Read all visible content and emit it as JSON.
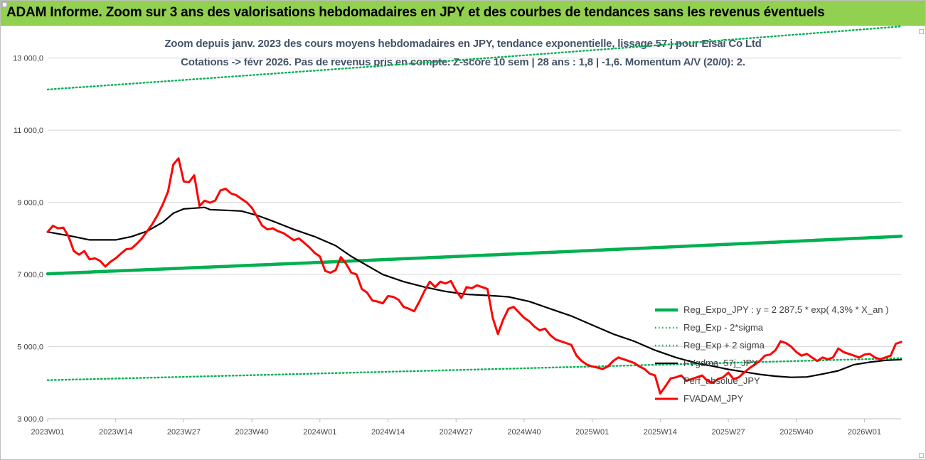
{
  "header": {
    "title": "ADAM Informe. Zoom sur 3 ans des valorisations hebdomadaires en JPY et des courbes de tendances sans les revenus éventuels"
  },
  "chart_data": {
    "type": "line",
    "title_line1": "Zoom depuis janv. 2023 des cours moyens hebdomadaires en JPY, tendance exponentielle, lissage 57 j pour Eisai Co Ltd",
    "title_line2": "Cotations -> févr 2026. Pas de revenus pris en compte. Z-score 10 sem | 28 ans : 1,8 | -1,6. Momentum A/V (20/0): 2.",
    "ylim": [
      3000,
      14000
    ],
    "yticks": [
      3000,
      5000,
      7000,
      9000,
      11000,
      13000
    ],
    "ytick_labels": [
      "3 000,0",
      "5 000,0",
      "7 000,0",
      "9 000,0",
      "11 000,0",
      "13 000,0"
    ],
    "x_count": 164,
    "xticks": [
      {
        "i": 0,
        "label": "2023W01"
      },
      {
        "i": 13,
        "label": "2023W14"
      },
      {
        "i": 26,
        "label": "2023W27"
      },
      {
        "i": 39,
        "label": "2023W40"
      },
      {
        "i": 52,
        "label": "2024W01"
      },
      {
        "i": 65,
        "label": "2024W14"
      },
      {
        "i": 78,
        "label": "2024W27"
      },
      {
        "i": 91,
        "label": "2024W40"
      },
      {
        "i": 104,
        "label": "2025W01"
      },
      {
        "i": 117,
        "label": "2025W14"
      },
      {
        "i": 130,
        "label": "2025W27"
      },
      {
        "i": 143,
        "label": "2025W40"
      },
      {
        "i": 156,
        "label": "2026W01"
      }
    ],
    "legend_placement": "right",
    "series": [
      {
        "name": "Reg_Expo_JPY : y = 2 287,5 * exp( 4,3% * X_an )",
        "color": "#00b050",
        "style": "thick",
        "start": 7020,
        "end": 8060
      },
      {
        "name": "Reg_Exp - 2*sigma",
        "color": "#00b050",
        "style": "dotted",
        "start": 4070,
        "end": 4680
      },
      {
        "name": "Reg_Exp + 2 sigma",
        "color": "#00b050",
        "style": "dotted",
        "start": 12130,
        "end": 13880
      },
      {
        "name": "FVgdma_57j_JPY",
        "color": "#000000",
        "style": "solid",
        "points": [
          [
            0,
            8180
          ],
          [
            5,
            8050
          ],
          [
            8,
            7960
          ],
          [
            13,
            7960
          ],
          [
            16,
            8050
          ],
          [
            19,
            8200
          ],
          [
            22,
            8450
          ],
          [
            24,
            8700
          ],
          [
            26,
            8820
          ],
          [
            28,
            8840
          ],
          [
            30,
            8860
          ],
          [
            31,
            8800
          ],
          [
            34,
            8780
          ],
          [
            37,
            8760
          ],
          [
            40,
            8640
          ],
          [
            43,
            8480
          ],
          [
            47,
            8250
          ],
          [
            51,
            8050
          ],
          [
            55,
            7800
          ],
          [
            58,
            7500
          ],
          [
            61,
            7250
          ],
          [
            64,
            7000
          ],
          [
            68,
            6800
          ],
          [
            72,
            6650
          ],
          [
            76,
            6530
          ],
          [
            80,
            6450
          ],
          [
            84,
            6420
          ],
          [
            88,
            6380
          ],
          [
            92,
            6250
          ],
          [
            96,
            6050
          ],
          [
            100,
            5850
          ],
          [
            104,
            5600
          ],
          [
            108,
            5350
          ],
          [
            112,
            5150
          ],
          [
            116,
            4900
          ],
          [
            120,
            4700
          ],
          [
            124,
            4540
          ],
          [
            127,
            4460
          ],
          [
            130,
            4370
          ],
          [
            133,
            4300
          ],
          [
            136,
            4230
          ],
          [
            139,
            4180
          ],
          [
            142,
            4150
          ],
          [
            145,
            4160
          ],
          [
            148,
            4240
          ],
          [
            151,
            4330
          ],
          [
            154,
            4500
          ],
          [
            157,
            4570
          ],
          [
            160,
            4620
          ],
          [
            163,
            4640
          ]
        ]
      },
      {
        "name": "Perf_absolue_JPY",
        "color": "#7f7f7f",
        "style": "hidden"
      },
      {
        "name": "FVADAM_JPY",
        "color": "#ff0000",
        "style": "solid",
        "points": [
          [
            0,
            8180
          ],
          [
            1,
            8350
          ],
          [
            2,
            8280
          ],
          [
            3,
            8300
          ],
          [
            4,
            8050
          ],
          [
            5,
            7650
          ],
          [
            6,
            7550
          ],
          [
            7,
            7650
          ],
          [
            8,
            7420
          ],
          [
            9,
            7450
          ],
          [
            10,
            7380
          ],
          [
            11,
            7220
          ],
          [
            12,
            7350
          ],
          [
            13,
            7450
          ],
          [
            14,
            7580
          ],
          [
            15,
            7700
          ],
          [
            16,
            7720
          ],
          [
            17,
            7850
          ],
          [
            18,
            8000
          ],
          [
            19,
            8200
          ],
          [
            20,
            8400
          ],
          [
            21,
            8650
          ],
          [
            22,
            8950
          ],
          [
            23,
            9300
          ],
          [
            24,
            10050
          ],
          [
            25,
            10220
          ],
          [
            26,
            9580
          ],
          [
            27,
            9560
          ],
          [
            28,
            9750
          ],
          [
            29,
            8900
          ],
          [
            30,
            9050
          ],
          [
            31,
            8990
          ],
          [
            32,
            9050
          ],
          [
            33,
            9330
          ],
          [
            34,
            9380
          ],
          [
            35,
            9250
          ],
          [
            36,
            9200
          ],
          [
            37,
            9100
          ],
          [
            38,
            9000
          ],
          [
            39,
            8850
          ],
          [
            40,
            8600
          ],
          [
            41,
            8350
          ],
          [
            42,
            8250
          ],
          [
            43,
            8280
          ],
          [
            44,
            8200
          ],
          [
            45,
            8150
          ],
          [
            46,
            8050
          ],
          [
            47,
            7950
          ],
          [
            48,
            8000
          ],
          [
            49,
            7880
          ],
          [
            50,
            7750
          ],
          [
            51,
            7600
          ],
          [
            52,
            7500
          ],
          [
            53,
            7100
          ],
          [
            54,
            7050
          ],
          [
            55,
            7120
          ],
          [
            56,
            7480
          ],
          [
            57,
            7300
          ],
          [
            58,
            7050
          ],
          [
            59,
            7000
          ],
          [
            60,
            6600
          ],
          [
            61,
            6500
          ],
          [
            62,
            6280
          ],
          [
            63,
            6250
          ],
          [
            64,
            6200
          ],
          [
            65,
            6400
          ],
          [
            66,
            6380
          ],
          [
            67,
            6300
          ],
          [
            68,
            6100
          ],
          [
            69,
            6050
          ],
          [
            70,
            5980
          ],
          [
            71,
            6250
          ],
          [
            72,
            6550
          ],
          [
            73,
            6800
          ],
          [
            74,
            6650
          ],
          [
            75,
            6800
          ],
          [
            76,
            6750
          ],
          [
            77,
            6820
          ],
          [
            78,
            6550
          ],
          [
            79,
            6350
          ],
          [
            80,
            6650
          ],
          [
            81,
            6620
          ],
          [
            82,
            6700
          ],
          [
            83,
            6650
          ],
          [
            84,
            6600
          ],
          [
            85,
            5800
          ],
          [
            86,
            5350
          ],
          [
            87,
            5750
          ],
          [
            88,
            6050
          ],
          [
            89,
            6100
          ],
          [
            90,
            5950
          ],
          [
            91,
            5800
          ],
          [
            92,
            5700
          ],
          [
            93,
            5550
          ],
          [
            94,
            5450
          ],
          [
            95,
            5500
          ],
          [
            96,
            5320
          ],
          [
            97,
            5200
          ],
          [
            98,
            5150
          ],
          [
            99,
            5100
          ],
          [
            100,
            5050
          ],
          [
            101,
            4750
          ],
          [
            102,
            4600
          ],
          [
            103,
            4500
          ],
          [
            104,
            4450
          ],
          [
            105,
            4420
          ],
          [
            106,
            4380
          ],
          [
            107,
            4450
          ],
          [
            108,
            4600
          ],
          [
            109,
            4700
          ],
          [
            110,
            4650
          ],
          [
            111,
            4600
          ],
          [
            112,
            4550
          ],
          [
            113,
            4450
          ],
          [
            114,
            4380
          ],
          [
            115,
            4250
          ],
          [
            116,
            4200
          ],
          [
            117,
            3700
          ],
          [
            118,
            3900
          ],
          [
            119,
            4120
          ],
          [
            120,
            4150
          ],
          [
            121,
            4200
          ],
          [
            122,
            4050
          ],
          [
            123,
            4100
          ],
          [
            124,
            4150
          ],
          [
            125,
            4200
          ],
          [
            126,
            4050
          ],
          [
            127,
            4000
          ],
          [
            128,
            4100
          ],
          [
            129,
            4150
          ],
          [
            130,
            4280
          ],
          [
            131,
            4100
          ],
          [
            132,
            4150
          ],
          [
            133,
            4280
          ],
          [
            134,
            4400
          ],
          [
            135,
            4500
          ],
          [
            136,
            4600
          ],
          [
            137,
            4750
          ],
          [
            138,
            4780
          ],
          [
            139,
            4900
          ],
          [
            140,
            5150
          ],
          [
            141,
            5100
          ],
          [
            142,
            5000
          ],
          [
            143,
            4850
          ],
          [
            144,
            4750
          ],
          [
            145,
            4800
          ],
          [
            146,
            4700
          ],
          [
            147,
            4600
          ],
          [
            148,
            4700
          ],
          [
            149,
            4650
          ],
          [
            150,
            4700
          ],
          [
            151,
            4950
          ],
          [
            152,
            4850
          ],
          [
            153,
            4800
          ],
          [
            154,
            4750
          ],
          [
            155,
            4700
          ],
          [
            156,
            4780
          ],
          [
            157,
            4800
          ],
          [
            158,
            4700
          ],
          [
            159,
            4650
          ],
          [
            160,
            4700
          ],
          [
            161,
            4750
          ],
          [
            162,
            5080
          ],
          [
            163,
            5130
          ]
        ]
      }
    ]
  }
}
